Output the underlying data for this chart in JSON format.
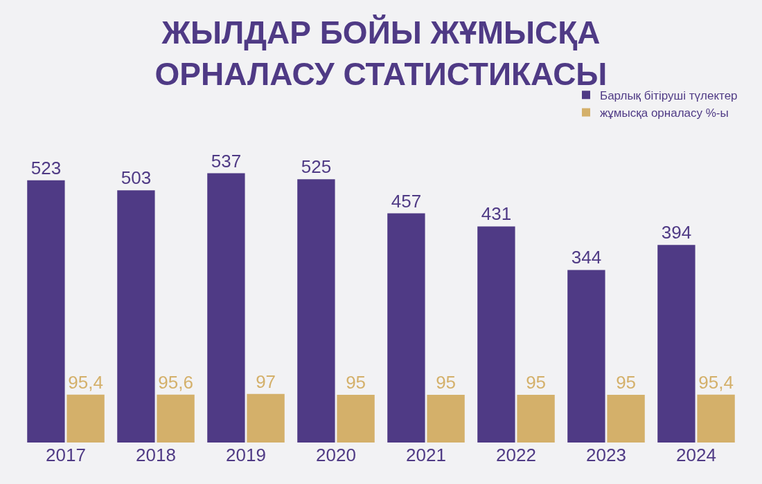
{
  "chart_data": {
    "type": "bar",
    "title": "ЖЫЛДАР БОЙЫ ЖҰМЫСҚА\nОРНАЛАСУ СТАТИСТИКАСЫ",
    "categories": [
      "2017",
      "2018",
      "2019",
      "2020",
      "2021",
      "2022",
      "2023",
      "2024"
    ],
    "series": [
      {
        "name": "Барлық бітіруші түлектер",
        "color": "#4f3a85",
        "values": [
          523,
          503,
          537,
          525,
          457,
          431,
          344,
          394
        ],
        "value_labels": [
          "523",
          "503",
          "537",
          "525",
          "457",
          "431",
          "344",
          "394"
        ]
      },
      {
        "name": "жұмысқа орналасу %-ы",
        "color": "#d4b06a",
        "values": [
          95.4,
          95.6,
          97,
          95,
          95,
          95,
          95,
          95.4
        ],
        "value_labels": [
          "95,4",
          "95,6",
          "97",
          "95",
          "95",
          "95",
          "95",
          "95,4"
        ]
      }
    ],
    "legend": "top right",
    "tick_labels": "x",
    "grid": false
  }
}
